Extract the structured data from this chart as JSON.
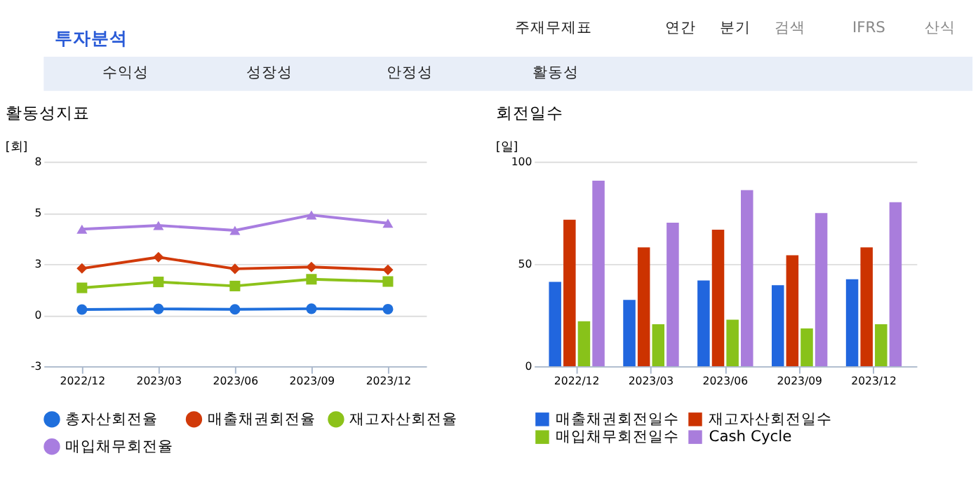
{
  "chart_data": [
    {
      "type": "line",
      "title": "활동성지표",
      "ylabel": "[회]",
      "annotations": [
        "투자분석",
        "주재무제표",
        "연간",
        "분기",
        "검색",
        "IFRS",
        "산식",
        "수익성",
        "성장성",
        "안정성",
        "활동성"
      ],
      "categories": [
        "2022/12",
        "2023/03",
        "2023/06",
        "2023/09",
        "2023/12"
      ],
      "series": [
        {
          "name": "총자산회전율",
          "color": "#1f6fdc",
          "marker": "circle",
          "values": [
            0.27,
            0.3,
            0.28,
            0.31,
            0.29
          ]
        },
        {
          "name": "매출채권회전율",
          "color": "#d13a0a",
          "marker": "diamond",
          "values": [
            2.28,
            2.83,
            2.26,
            2.35,
            2.21
          ]
        },
        {
          "name": "재고자산회전율",
          "color": "#8cc21a",
          "marker": "square",
          "values": [
            1.33,
            1.62,
            1.42,
            1.75,
            1.64
          ]
        },
        {
          "name": "매입채무회전율",
          "color": "#a87de0",
          "marker": "triangle",
          "values": [
            4.2,
            4.38,
            4.14,
            4.89,
            4.49
          ]
        }
      ],
      "ylim": [
        -2.5,
        7.5
      ],
      "yticks": [
        {
          "value": -2.5,
          "label": "-3"
        },
        0,
        {
          "value": 2.5,
          "label": "3"
        },
        5,
        {
          "value": 7.5,
          "label": "8"
        }
      ],
      "grid": "y",
      "legend": "bottom"
    },
    {
      "type": "bar",
      "title": "회전일수",
      "ylabel": "[일]",
      "categories": [
        "2022/12",
        "2023/03",
        "2023/06",
        "2023/09",
        "2023/12"
      ],
      "series": [
        {
          "name": "매출채권회전일수",
          "color": "#2166de",
          "values": [
            41.2,
            32.4,
            41.9,
            39.6,
            42.5
          ]
        },
        {
          "name": "재고자산회전일수",
          "color": "#cc3300",
          "values": [
            71.6,
            58.1,
            66.7,
            54.2,
            58.1
          ]
        },
        {
          "name": "매입채무회전일수",
          "color": "#88c21a",
          "values": [
            22.0,
            20.5,
            22.7,
            18.5,
            20.5
          ]
        },
        {
          "name": "Cash Cycle",
          "color": "#a97ddc",
          "values": [
            90.7,
            70.2,
            86.1,
            74.9,
            80.2
          ]
        }
      ],
      "ylim": [
        0,
        100
      ],
      "yticks": [
        0,
        50,
        100
      ],
      "grid": "y",
      "legend": "bottom"
    }
  ]
}
